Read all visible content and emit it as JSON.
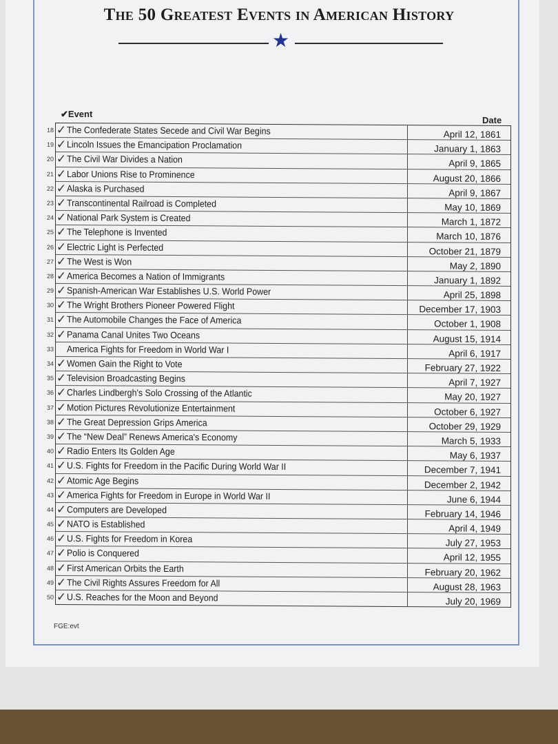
{
  "title": "The 50 Greatest Events in American History",
  "header": {
    "event_label": "✔Event",
    "date_label": "Date"
  },
  "footer": "FGE:evt",
  "rows": [
    {
      "num": "18",
      "checked": true,
      "event": "The Confederate States Secede and Civil War Begins",
      "date": "April 12, 1861"
    },
    {
      "num": "19",
      "checked": true,
      "event": "Lincoln Issues the Emancipation Proclamation",
      "date": "January 1, 1863"
    },
    {
      "num": "20",
      "checked": true,
      "event": "The Civil War Divides a Nation",
      "date": "April 9, 1865"
    },
    {
      "num": "21",
      "checked": true,
      "event": "Labor Unions Rise to Prominence",
      "date": "August 20, 1866"
    },
    {
      "num": "22",
      "checked": true,
      "event": "Alaska is Purchased",
      "date": "April 9, 1867"
    },
    {
      "num": "23",
      "checked": true,
      "event": "Transcontinental Railroad is Completed",
      "date": "May 10, 1869"
    },
    {
      "num": "24",
      "checked": true,
      "event": "National Park System is Created",
      "date": "March 1, 1872"
    },
    {
      "num": "25",
      "checked": true,
      "event": "The Telephone is Invented",
      "date": "March 10, 1876"
    },
    {
      "num": "26",
      "checked": true,
      "event": "Electric Light is Perfected",
      "date": "October 21, 1879"
    },
    {
      "num": "27",
      "checked": true,
      "event": "The West is Won",
      "date": "May 2, 1890"
    },
    {
      "num": "28",
      "checked": true,
      "event": "America Becomes a Nation of Immigrants",
      "date": "January 1, 1892"
    },
    {
      "num": "29",
      "checked": true,
      "event": "Spanish-American War Establishes U.S. World Power",
      "date": "April 25, 1898"
    },
    {
      "num": "30",
      "checked": true,
      "event": "The Wright Brothers Pioneer Powered Flight",
      "date": "December 17, 1903"
    },
    {
      "num": "31",
      "checked": true,
      "event": "The Automobile Changes the Face of America",
      "date": "October 1, 1908"
    },
    {
      "num": "32",
      "checked": true,
      "event": "Panama Canal Unites Two Oceans",
      "date": "August 15, 1914"
    },
    {
      "num": "33",
      "checked": false,
      "event": "America Fights for Freedom in World War I",
      "date": "April 6, 1917"
    },
    {
      "num": "34",
      "checked": true,
      "event": "Women Gain the Right to Vote",
      "date": "February 27, 1922"
    },
    {
      "num": "35",
      "checked": true,
      "event": "Television Broadcasting Begins",
      "date": "April 7, 1927"
    },
    {
      "num": "36",
      "checked": true,
      "event": "Charles Lindbergh's Solo Crossing of the Atlantic",
      "date": "May 20, 1927"
    },
    {
      "num": "37",
      "checked": true,
      "event": "Motion Pictures Revolutionize Entertainment",
      "date": "October 6, 1927"
    },
    {
      "num": "38",
      "checked": true,
      "event": "The Great Depression Grips America",
      "date": "October 29, 1929"
    },
    {
      "num": "39",
      "checked": true,
      "event": "The “New Deal” Renews America's Economy",
      "date": "March 5, 1933"
    },
    {
      "num": "40",
      "checked": true,
      "event": "Radio Enters Its Golden Age",
      "date": "May 6, 1937"
    },
    {
      "num": "41",
      "checked": true,
      "event": "U.S. Fights for Freedom in the Pacific During World War II",
      "date": "December 7, 1941"
    },
    {
      "num": "42",
      "checked": true,
      "event": "Atomic Age Begins",
      "date": "December 2, 1942"
    },
    {
      "num": "43",
      "checked": true,
      "event": "America Fights for Freedom in Europe in World War II",
      "date": "June 6, 1944"
    },
    {
      "num": "44",
      "checked": true,
      "event": "Computers are Developed",
      "date": "February 14, 1946"
    },
    {
      "num": "45",
      "checked": true,
      "event": "NATO is Established",
      "date": "April 4, 1949"
    },
    {
      "num": "46",
      "checked": true,
      "event": "U.S. Fights for Freedom in Korea",
      "date": "July 27, 1953"
    },
    {
      "num": "47",
      "checked": true,
      "event": "Polio is Conquered",
      "date": "April 12, 1955"
    },
    {
      "num": "48",
      "checked": true,
      "event": "First American Orbits the Earth",
      "date": "February 20, 1962"
    },
    {
      "num": "49",
      "checked": true,
      "event": "The Civil Rights Assures Freedom for All",
      "date": "August 28, 1963"
    },
    {
      "num": "50",
      "checked": true,
      "event": "U.S. Reaches for the Moon and Beyond",
      "date": "July 20, 1969"
    }
  ],
  "colors": {
    "star": "#23338f",
    "frame": "#7f93c4"
  }
}
